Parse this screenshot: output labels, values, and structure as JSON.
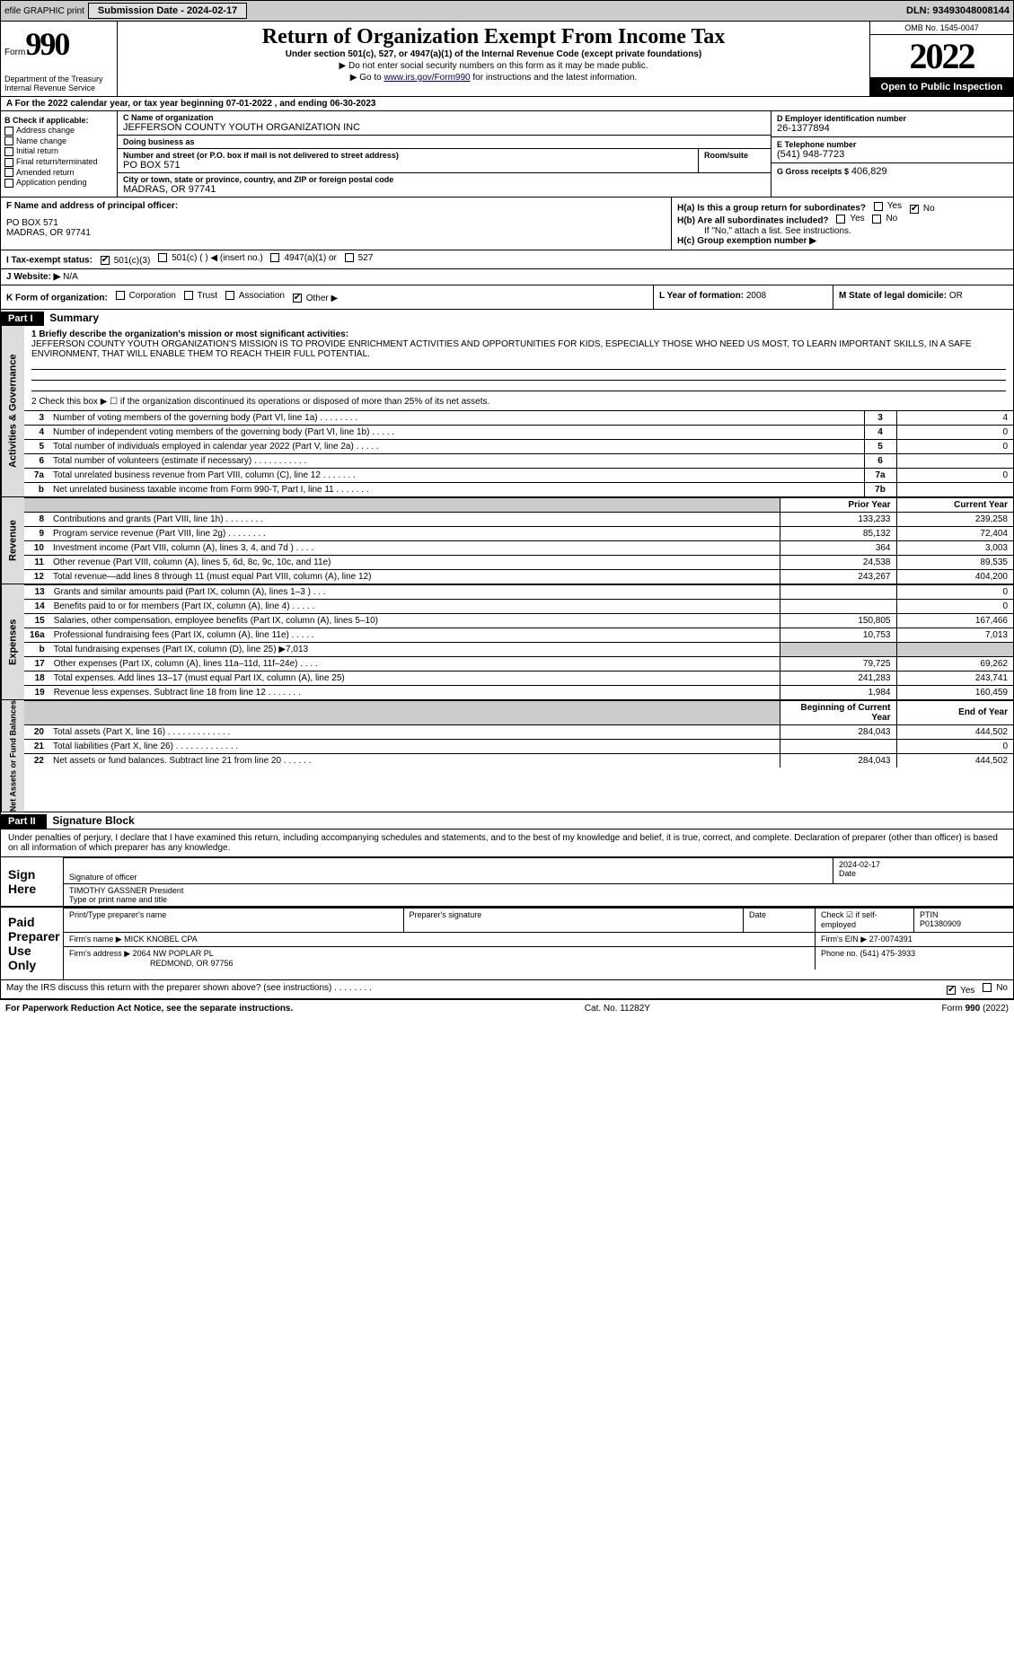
{
  "topbar": {
    "efile": "efile GRAPHIC print",
    "submission_label": "Submission Date - 2024-02-17",
    "dln_label": "DLN: 93493048008144"
  },
  "header": {
    "form_word": "Form",
    "form_number": "990",
    "title": "Return of Organization Exempt From Income Tax",
    "subtitle": "Under section 501(c), 527, or 4947(a)(1) of the Internal Revenue Code (except private foundations)",
    "note1": "▶ Do not enter social security numbers on this form as it may be made public.",
    "note2_pre": "▶ Go to ",
    "note2_link": "www.irs.gov/Form990",
    "note2_post": " for instructions and the latest information.",
    "dept": "Department of the Treasury\nInternal Revenue Service",
    "omb": "OMB No. 1545-0047",
    "year": "2022",
    "open": "Open to Public Inspection"
  },
  "row_a": "A For the 2022 calendar year, or tax year beginning 07-01-2022    , and ending 06-30-2023",
  "col_b": {
    "title": "B Check if applicable:",
    "opts": [
      "Address change",
      "Name change",
      "Initial return",
      "Final return/terminated",
      "Amended return",
      "Application pending"
    ]
  },
  "col_c": {
    "name_lbl": "C Name of organization",
    "name": "JEFFERSON COUNTY YOUTH ORGANIZATION INC",
    "dba_lbl": "Doing business as",
    "dba": "",
    "addr_lbl": "Number and street (or P.O. box if mail is not delivered to street address)",
    "room_lbl": "Room/suite",
    "addr": "PO BOX 571",
    "city_lbl": "City or town, state or province, country, and ZIP or foreign postal code",
    "city": "MADRAS, OR  97741"
  },
  "col_d": {
    "ein_lbl": "D Employer identification number",
    "ein": "26-1377894",
    "tel_lbl": "E Telephone number",
    "tel": "(541) 948-7723",
    "gross_lbl": "G Gross receipts $",
    "gross": "406,829"
  },
  "col_f": {
    "lbl": "F Name and address of principal officer:",
    "line1": "PO BOX 571",
    "line2": "MADRAS, OR  97741"
  },
  "col_h": {
    "ha": "H(a)  Is this a group return for subordinates?",
    "hb": "H(b)  Are all subordinates included?",
    "hb_note": "If \"No,\" attach a list. See instructions.",
    "hc": "H(c)  Group exemption number ▶",
    "yes": "Yes",
    "no": "No"
  },
  "row_i": {
    "lbl": "I  Tax-exempt status:",
    "o1": "501(c)(3)",
    "o2": "501(c) (    ) ◀ (insert no.)",
    "o3": "4947(a)(1) or",
    "o4": "527"
  },
  "row_j": {
    "lbl": "J  Website: ▶",
    "val": "N/A"
  },
  "row_k": {
    "lbl": "K Form of organization:",
    "o1": "Corporation",
    "o2": "Trust",
    "o3": "Association",
    "o4": "Other ▶"
  },
  "row_l": {
    "lbl": "L Year of formation:",
    "val": "2008"
  },
  "row_m": {
    "lbl": "M State of legal domicile:",
    "val": "OR"
  },
  "part1": {
    "tag": "Part I",
    "title": "Summary",
    "q1_lbl": "1  Briefly describe the organization's mission or most significant activities:",
    "q1_text": "JEFFERSON COUNTY YOUTH ORGANIZATION'S MISSION IS TO PROVIDE ENRICHMENT ACTIVITIES AND OPPORTUNITIES FOR KIDS, ESPECIALLY THOSE WHO NEED US MOST, TO LEARN IMPORTANT SKILLS, IN A SAFE ENVIRONMENT, THAT WILL ENABLE THEM TO REACH THEIR FULL POTENTIAL.",
    "q2": "2   Check this box ▶ ☐  if the organization discontinued its operations or disposed of more than 25% of its net assets."
  },
  "side_labels": {
    "ag": "Activities & Governance",
    "rev": "Revenue",
    "exp": "Expenses",
    "na": "Net Assets or Fund Balances"
  },
  "gov_rows": [
    {
      "n": "3",
      "t": "Number of voting members of the governing body (Part VI, line 1a)   .    .    .    .    .    .    .    .",
      "box": "3",
      "v": "4"
    },
    {
      "n": "4",
      "t": "Number of independent voting members of the governing body (Part VI, line 1b)  .    .    .    .    .",
      "box": "4",
      "v": "0"
    },
    {
      "n": "5",
      "t": "Total number of individuals employed in calendar year 2022 (Part V, line 2a)  .    .    .    .    .",
      "box": "5",
      "v": "0"
    },
    {
      "n": "6",
      "t": "Total number of volunteers (estimate if necessary)   .    .    .    .    .    .    .    .    .    .    .",
      "box": "6",
      "v": ""
    },
    {
      "n": "7a",
      "t": "Total unrelated business revenue from Part VIII, column (C), line 12  .    .    .    .    .    .    .",
      "box": "7a",
      "v": "0"
    },
    {
      "n": "b",
      "t": "Net unrelated business taxable income from Form 990-T, Part I, line 11  .    .    .    .    .    .    .",
      "box": "7b",
      "v": ""
    }
  ],
  "two_col_hdr": {
    "prior": "Prior Year",
    "current": "Current Year"
  },
  "rev_rows": [
    {
      "n": "8",
      "t": "Contributions and grants (Part VIII, line 1h)   .    .    .    .    .    .    .    .",
      "p": "133,233",
      "c": "239,258"
    },
    {
      "n": "9",
      "t": "Program service revenue (Part VIII, line 2g)   .    .    .    .    .    .    .    .",
      "p": "85,132",
      "c": "72,404"
    },
    {
      "n": "10",
      "t": "Investment income (Part VIII, column (A), lines 3, 4, and 7d )  .    .    .    .",
      "p": "364",
      "c": "3,003"
    },
    {
      "n": "11",
      "t": "Other revenue (Part VIII, column (A), lines 5, 6d, 8c, 9c, 10c, and 11e)",
      "p": "24,538",
      "c": "89,535"
    },
    {
      "n": "12",
      "t": "Total revenue—add lines 8 through 11 (must equal Part VIII, column (A), line 12)",
      "p": "243,267",
      "c": "404,200"
    }
  ],
  "exp_rows": [
    {
      "n": "13",
      "t": "Grants and similar amounts paid (Part IX, column (A), lines 1–3 )  .    .    .",
      "p": "",
      "c": "0"
    },
    {
      "n": "14",
      "t": "Benefits paid to or for members (Part IX, column (A), line 4)  .    .    .    .    .",
      "p": "",
      "c": "0"
    },
    {
      "n": "15",
      "t": "Salaries, other compensation, employee benefits (Part IX, column (A), lines 5–10)",
      "p": "150,805",
      "c": "167,466"
    },
    {
      "n": "16a",
      "t": "Professional fundraising fees (Part IX, column (A), line 11e)  .    .    .    .    .",
      "p": "10,753",
      "c": "7,013"
    },
    {
      "n": "b",
      "t": "Total fundraising expenses (Part IX, column (D), line 25) ▶7,013",
      "p": "shade",
      "c": "shade"
    },
    {
      "n": "17",
      "t": "Other expenses (Part IX, column (A), lines 11a–11d, 11f–24e)  .    .    .    .",
      "p": "79,725",
      "c": "69,262"
    },
    {
      "n": "18",
      "t": "Total expenses. Add lines 13–17 (must equal Part IX, column (A), line 25)",
      "p": "241,283",
      "c": "243,741"
    },
    {
      "n": "19",
      "t": "Revenue less expenses. Subtract line 18 from line 12  .    .    .    .    .    .    .",
      "p": "1,984",
      "c": "160,459"
    }
  ],
  "na_hdr": {
    "begin": "Beginning of Current Year",
    "end": "End of Year"
  },
  "na_rows": [
    {
      "n": "20",
      "t": "Total assets (Part X, line 16)  .    .    .    .    .    .    .    .    .    .    .    .    .",
      "p": "284,043",
      "c": "444,502"
    },
    {
      "n": "21",
      "t": "Total liabilities (Part X, line 26)  .    .    .    .    .    .    .    .    .    .    .    .    .",
      "p": "",
      "c": "0"
    },
    {
      "n": "22",
      "t": "Net assets or fund balances. Subtract line 21 from line 20  .    .    .    .    .    .",
      "p": "284,043",
      "c": "444,502"
    }
  ],
  "part2": {
    "tag": "Part II",
    "title": "Signature Block",
    "perjury": "Under penalties of perjury, I declare that I have examined this return, including accompanying schedules and statements, and to the best of my knowledge and belief, it is true, correct, and complete. Declaration of preparer (other than officer) is based on all information of which preparer has any knowledge."
  },
  "sign": {
    "here": "Sign Here",
    "sig_lbl": "Signature of officer",
    "date_lbl": "Date",
    "date": "2024-02-17",
    "name": "TIMOTHY GASSNER  President",
    "name_lbl": "Type or print name and title"
  },
  "paid": {
    "here": "Paid Preparer Use Only",
    "print_lbl": "Print/Type preparer's name",
    "sig_lbl": "Preparer's signature",
    "date_lbl": "Date",
    "check_lbl": "Check ☑ if self-employed",
    "ptin_lbl": "PTIN",
    "ptin": "P01380909",
    "firm_name_lbl": "Firm's name    ▶",
    "firm_name": "MICK KNOBEL CPA",
    "firm_ein_lbl": "Firm's EIN ▶",
    "firm_ein": "27-0074391",
    "firm_addr_lbl": "Firm's address ▶",
    "firm_addr": "2064 NW POPLAR PL",
    "firm_city": "REDMOND, OR  97756",
    "phone_lbl": "Phone no.",
    "phone": "(541) 475-3933"
  },
  "discuss": {
    "q": "May the IRS discuss this return with the preparer shown above? (see instructions)  .    .    .    .    .    .    .    .",
    "yes": "Yes",
    "no": "No"
  },
  "footer": {
    "left": "For Paperwork Reduction Act Notice, see the separate instructions.",
    "mid": "Cat. No. 11282Y",
    "right": "Form 990 (2022)"
  },
  "colors": {
    "black": "#000",
    "shade": "#ccc",
    "link": "#006"
  }
}
